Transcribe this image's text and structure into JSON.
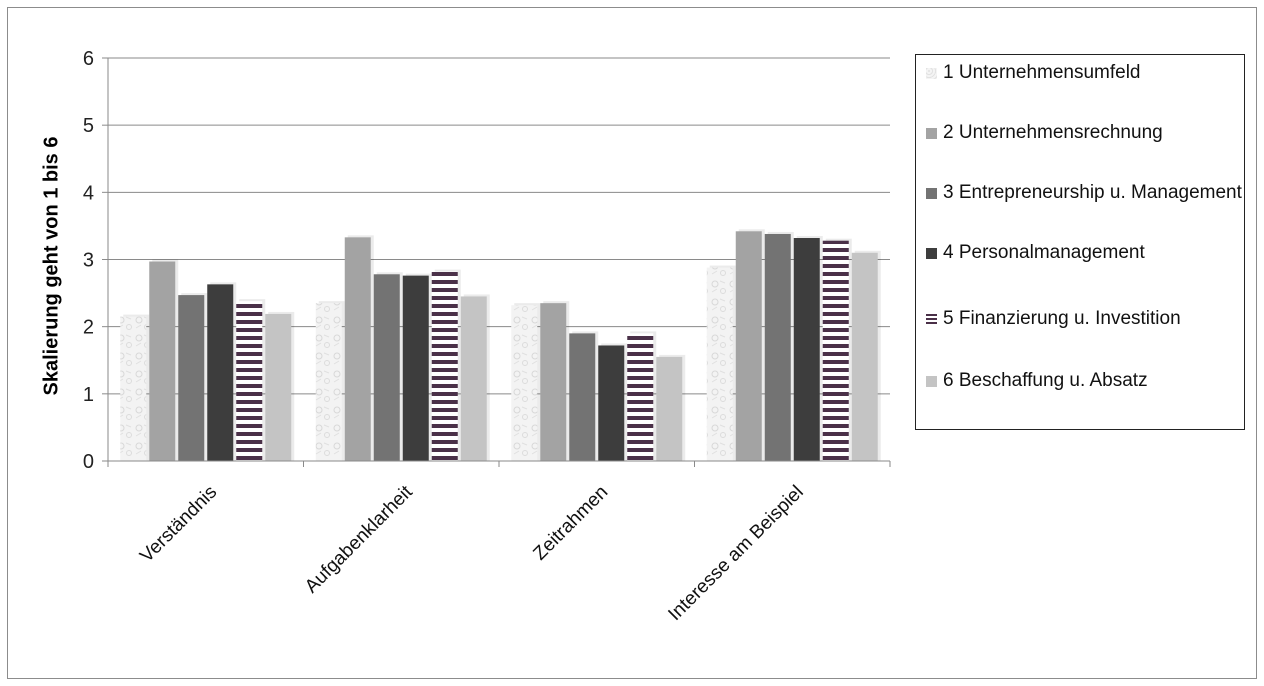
{
  "chart_data": {
    "type": "bar",
    "title": "",
    "xlabel": "",
    "ylabel": "Skalierung geht von 1 bis 6",
    "ylim": [
      0,
      6
    ],
    "yticks": [
      "0",
      "1",
      "2",
      "3",
      "4",
      "5",
      "6"
    ],
    "grid": true,
    "legend_position": "right",
    "categories": [
      "Verständnis",
      "Aufgabenklarheit",
      "Zeitrahmen",
      "Interesse am Beispiel"
    ],
    "series": [
      {
        "name": "1 Unternehmensumfeld",
        "values": [
          2.15,
          2.35,
          2.32,
          2.88
        ],
        "color": "#ececec",
        "pattern": "texture"
      },
      {
        "name": "2 Unternehmensrechnung",
        "values": [
          2.97,
          3.33,
          2.35,
          3.42
        ],
        "color": "#a3a3a3",
        "pattern": "solid"
      },
      {
        "name": "3 Entrepreneurship u. Management",
        "values": [
          2.47,
          2.78,
          1.9,
          3.38
        ],
        "color": "#737373",
        "pattern": "solid"
      },
      {
        "name": "4 Personalmanagement",
        "values": [
          2.63,
          2.76,
          1.72,
          3.32
        ],
        "color": "#3d3d3d",
        "pattern": "solid"
      },
      {
        "name": "5 Finanzierung u. Investition",
        "values": [
          2.38,
          2.82,
          1.9,
          3.28
        ],
        "color": "#4a3048",
        "pattern": "stripes"
      },
      {
        "name": "6 Beschaffung u. Absatz",
        "values": [
          2.19,
          2.45,
          1.55,
          3.1
        ],
        "color": "#c4c4c4",
        "pattern": "solid"
      }
    ]
  }
}
